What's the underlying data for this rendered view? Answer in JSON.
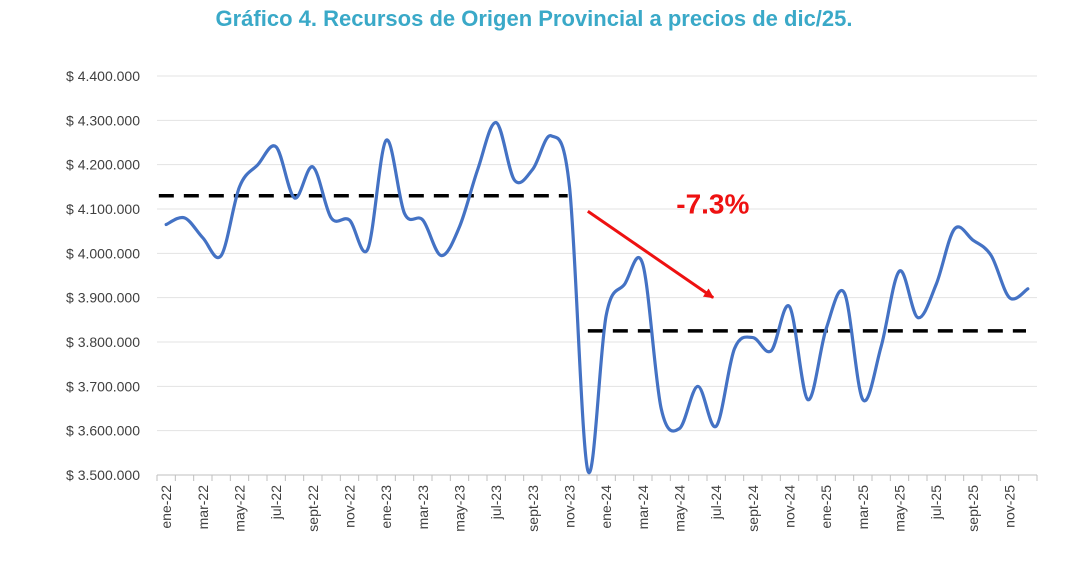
{
  "chart_data": {
    "type": "line",
    "title": "Gráfico 4. Recursos de Origen Provincial a precios de dic/25.",
    "xlabel": "",
    "ylabel": "",
    "ylim": [
      3500000,
      4400000
    ],
    "yticks": [
      3500000,
      3600000,
      3700000,
      3800000,
      3900000,
      4000000,
      4100000,
      4200000,
      4300000,
      4400000
    ],
    "ytick_labels": [
      "$ 3.500.000",
      "$ 3.600.000",
      "$ 3.700.000",
      "$ 3.800.000",
      "$ 3.900.000",
      "$ 4.000.000",
      "$ 4.100.000",
      "$ 4.200.000",
      "$ 4.300.000",
      "$ 4.400.000"
    ],
    "categories": [
      "ene-22",
      "feb-22",
      "mar-22",
      "abr-22",
      "may-22",
      "jun-22",
      "jul-22",
      "ago-22",
      "sept-22",
      "oct-22",
      "nov-22",
      "dic-22",
      "ene-23",
      "feb-23",
      "mar-23",
      "abr-23",
      "may-23",
      "jun-23",
      "jul-23",
      "ago-23",
      "sept-23",
      "oct-23",
      "nov-23",
      "dic-23",
      "ene-24",
      "feb-24",
      "mar-24",
      "abr-24",
      "may-24",
      "jun-24",
      "jul-24",
      "ago-24",
      "sept-24",
      "oct-24",
      "nov-24",
      "dic-24",
      "ene-25",
      "feb-25",
      "mar-25",
      "abr-25",
      "may-25",
      "jun-25",
      "jul-25",
      "ago-25",
      "sept-25",
      "oct-25",
      "nov-25",
      "dic-25"
    ],
    "xtick_labels": [
      "ene-22",
      "mar-22",
      "may-22",
      "jul-22",
      "sept-22",
      "nov-22",
      "ene-23",
      "mar-23",
      "may-23",
      "jul-23",
      "sept-23",
      "nov-23",
      "ene-24",
      "mar-24",
      "may-24",
      "jul-24",
      "sept-24",
      "nov-24",
      "ene-25",
      "mar-25",
      "may-25",
      "jul-25",
      "sept-25",
      "nov-25"
    ],
    "series": [
      {
        "name": "Recursos de Origen Provincial",
        "color": "#4472c4",
        "values": [
          4065000,
          4080000,
          4035000,
          3995000,
          4150000,
          4200000,
          4240000,
          4125000,
          4195000,
          4080000,
          4075000,
          4010000,
          4255000,
          4090000,
          4075000,
          3995000,
          4060000,
          4190000,
          4295000,
          4165000,
          4190000,
          4265000,
          4150000,
          3510000,
          3860000,
          3930000,
          3975000,
          3650000,
          3605000,
          3700000,
          3610000,
          3785000,
          3810000,
          3780000,
          3880000,
          3670000,
          3830000,
          3910000,
          3670000,
          3790000,
          3960000,
          3855000,
          3930000,
          4055000,
          4030000,
          3995000,
          3900000,
          3920000
        ]
      }
    ],
    "reference_lines": [
      {
        "name": "average-2022-2023",
        "value": 4130000,
        "from": "ene-22",
        "to": "nov-23",
        "color": "#000000",
        "style": "dashed"
      },
      {
        "name": "average-2024-2025",
        "value": 3825000,
        "from": "dic-23",
        "to": "dic-25",
        "color": "#000000",
        "style": "dashed"
      }
    ],
    "annotation": {
      "text": "-7.3%",
      "color": "#ee1111"
    },
    "arrow_color": "#ee1111",
    "grid": true,
    "legend": "none"
  }
}
